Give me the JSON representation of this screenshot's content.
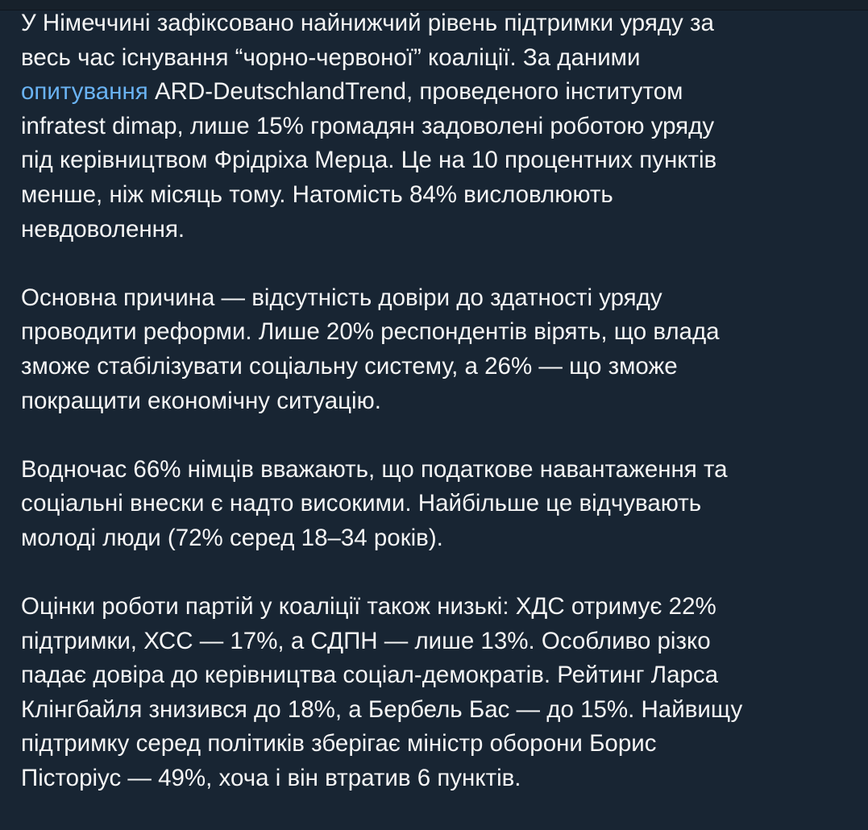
{
  "message": {
    "link_color": "#6ab3f3",
    "paragraphs": [
      {
        "lines": [
          "У Німеччині зафіксовано найнижчий рівень підтримки уряду за",
          "весь час існування “чорно-червоної” коаліції. За даними",
          "",
          "infratest dimap, лише 15% громадян задоволені роботою уряду",
          "під керівництвом Фрідріха Мерца. Це на 10 процентних пунктів",
          "менше, ніж місяць тому. Натомість 84% висловлюють",
          "невдоволення."
        ],
        "link_text": "опитування",
        "link_line_rest": " ARD-DeutschlandTrend, проведеного інститутом"
      },
      {
        "lines": [
          "Основна причина — відсутність довіри до здатності уряду",
          "проводити реформи. Лише 20% респондентів вірять, що влада",
          "зможе стабілізувати соціальну систему, а 26% — що зможе",
          "покращити економічну ситуацію."
        ]
      },
      {
        "lines": [
          "Водночас 66% німців вважають, що податкове навантаження та",
          "соціальні внески є надто високими. Найбільше це відчувають",
          "молоді люди (72% серед 18–34 років)."
        ]
      },
      {
        "lines": [
          "Оцінки роботи партій у коаліції також низькі: ХДС отримує 22%",
          "підтримки, ХСС — 17%, а СДПН — лише 13%. Особливо різко",
          "падає довіра до керівництва соціал-демократів. Рейтинг Ларса",
          "Клінгбайля знизився до 18%, а Бербель Бас — до 15%. Найвищу",
          "підтримку серед політиків зберігає міністр оборони Борис",
          "Пісторіус — 49%, хоча і він втратив 6 пунктів."
        ]
      }
    ]
  }
}
